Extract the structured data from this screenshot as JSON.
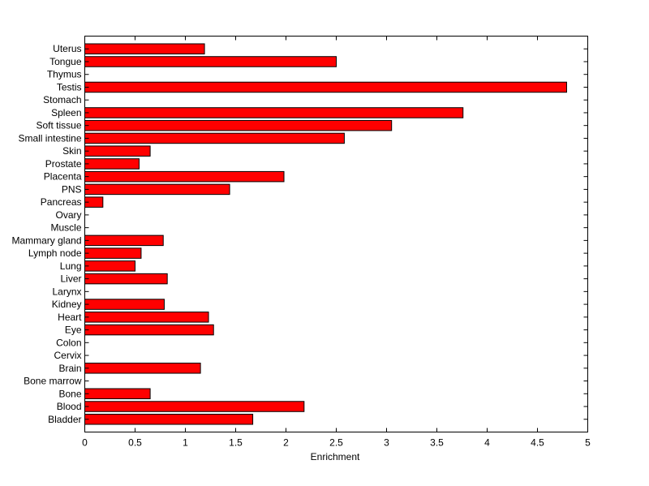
{
  "chart_data": {
    "type": "bar",
    "orientation": "horizontal",
    "xlabel": "Enrichment",
    "xlim": [
      0,
      5
    ],
    "xticks": [
      "0",
      "0.5",
      "1",
      "1.5",
      "2",
      "2.5",
      "3",
      "3.5",
      "4",
      "4.5",
      "5"
    ],
    "categories": [
      "Uterus",
      "Tongue",
      "Thymus",
      "Testis",
      "Stomach",
      "Spleen",
      "Soft tissue",
      "Small intestine",
      "Skin",
      "Prostate",
      "Placenta",
      "PNS",
      "Pancreas",
      "Ovary",
      "Muscle",
      "Mammary gland",
      "Lymph node",
      "Lung",
      "Liver",
      "Larynx",
      "Kidney",
      "Heart",
      "Eye",
      "Colon",
      "Cervix",
      "Brain",
      "Bone marrow",
      "Bone",
      "Blood",
      "Bladder"
    ],
    "values": [
      1.19,
      2.5,
      0,
      4.79,
      0,
      3.76,
      3.05,
      2.58,
      0.65,
      0.54,
      1.98,
      1.44,
      0.18,
      0,
      0,
      0.78,
      0.56,
      0.5,
      0.82,
      0,
      0.79,
      1.23,
      1.28,
      0,
      0,
      1.15,
      0,
      0.65,
      2.18,
      1.67
    ],
    "bar_color": "#ff0000",
    "edge_color": "#000000",
    "grid": false,
    "legend": "none"
  }
}
